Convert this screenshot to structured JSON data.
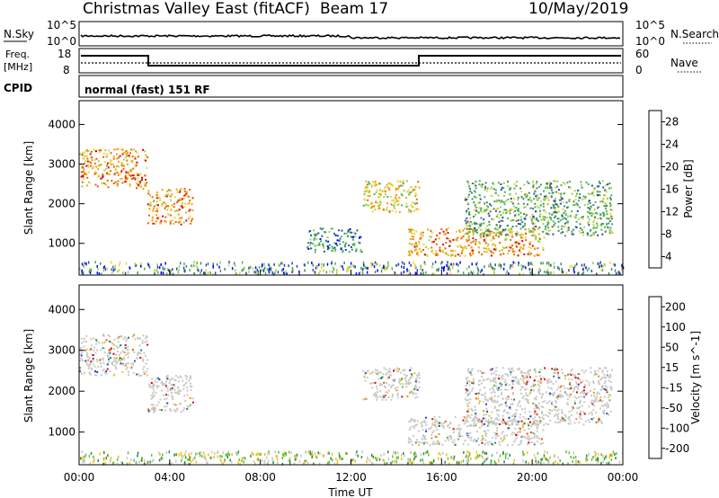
{
  "header": {
    "station_title": "Christmas Valley East (fitACF)",
    "beam_label": "Beam 17",
    "date": "10/May/2019"
  },
  "top_panels": {
    "nsky_label": "N.Sky",
    "nsky_top_tick": "10^5",
    "nsky_bottom_tick": "10^0",
    "nsearch_label": "N.Search",
    "nsearch_top_tick": "10^5",
    "nsearch_bottom_tick": "10^0",
    "freq_label_line1": "Freq.",
    "freq_label_line2": "[MHz]",
    "freq_ticks": [
      "18",
      "8"
    ],
    "nave_label": "Nave",
    "nave_ticks": [
      "60",
      "0"
    ],
    "cpid_label": "CPID",
    "cpid_text": "normal (fast) 151 RF"
  },
  "colors": {
    "power_scale": [
      "#0000ff",
      "#2a4aa8",
      "#3f8a6a",
      "#48b05a",
      "#9fd24a",
      "#f0d040",
      "#f2a000",
      "#f06000",
      "#e00000"
    ],
    "velocity_scale": [
      "#2040c8",
      "#1f6fa8",
      "#2a8a3a",
      "#60c040",
      "#c8c8c8",
      "#f2c000",
      "#f09000",
      "#f05000",
      "#e00000"
    ],
    "scatter_gray": "#c8c8c4"
  },
  "chart_data": [
    {
      "type": "heatmap",
      "title": "",
      "xlabel": "",
      "ylabel": "Slant Range [km]",
      "x_ticks": [
        "00:00",
        "04:00",
        "08:00",
        "12:00",
        "16:00",
        "20:00",
        "00:00"
      ],
      "y_ticks": [
        "1000",
        "2000",
        "3000",
        "4000"
      ],
      "ylim": [
        200,
        4600
      ],
      "colorbar": {
        "label": "Power [dB]",
        "ticks": [
          "28",
          "24",
          "20",
          "16",
          "12",
          "8",
          "4"
        ],
        "range": [
          0,
          30
        ]
      },
      "echo_regions": [
        {
          "t_start_h": 0.0,
          "t_end_h": 3.0,
          "range_km": [
            2400,
            3400
          ],
          "power_db": 22
        },
        {
          "t_start_h": 3.0,
          "t_end_h": 5.0,
          "range_km": [
            1500,
            2400
          ],
          "power_db": 24
        },
        {
          "t_start_h": 10.0,
          "t_end_h": 12.5,
          "range_km": [
            800,
            1400
          ],
          "power_db": 8
        },
        {
          "t_start_h": 12.5,
          "t_end_h": 15.0,
          "range_km": [
            1800,
            2600
          ],
          "power_db": 18
        },
        {
          "t_start_h": 14.5,
          "t_end_h": 20.5,
          "range_km": [
            700,
            1400
          ],
          "power_db": 22
        },
        {
          "t_start_h": 17.0,
          "t_end_h": 23.5,
          "range_km": [
            1200,
            2600
          ],
          "power_db": 10
        }
      ]
    },
    {
      "type": "heatmap",
      "title": "",
      "xlabel": "Time UT",
      "ylabel": "Slant Range [km]",
      "x_ticks": [
        "00:00",
        "04:00",
        "08:00",
        "12:00",
        "16:00",
        "20:00",
        "00:00"
      ],
      "y_ticks": [
        "1000",
        "2000",
        "3000",
        "4000"
      ],
      "ylim": [
        200,
        4600
      ],
      "colorbar": {
        "label": "Velocity [m s^-1]",
        "ticks": [
          "200",
          "100",
          "50",
          "15",
          "-15",
          "-50",
          "-100",
          "-200"
        ],
        "range": [
          -250,
          250
        ]
      },
      "echo_regions": [
        {
          "t_start_h": 0.0,
          "t_end_h": 3.0,
          "range_km": [
            2400,
            3400
          ],
          "velocity": 0
        },
        {
          "t_start_h": 3.0,
          "t_end_h": 5.0,
          "range_km": [
            1500,
            2400
          ],
          "velocity": -20
        },
        {
          "t_start_h": 12.5,
          "t_end_h": 15.0,
          "range_km": [
            1800,
            2600
          ],
          "velocity": 0
        },
        {
          "t_start_h": 14.5,
          "t_end_h": 20.5,
          "range_km": [
            700,
            1400
          ],
          "velocity": 0
        },
        {
          "t_start_h": 17.0,
          "t_end_h": 23.5,
          "range_km": [
            1200,
            2600
          ],
          "velocity": 0
        }
      ]
    }
  ]
}
